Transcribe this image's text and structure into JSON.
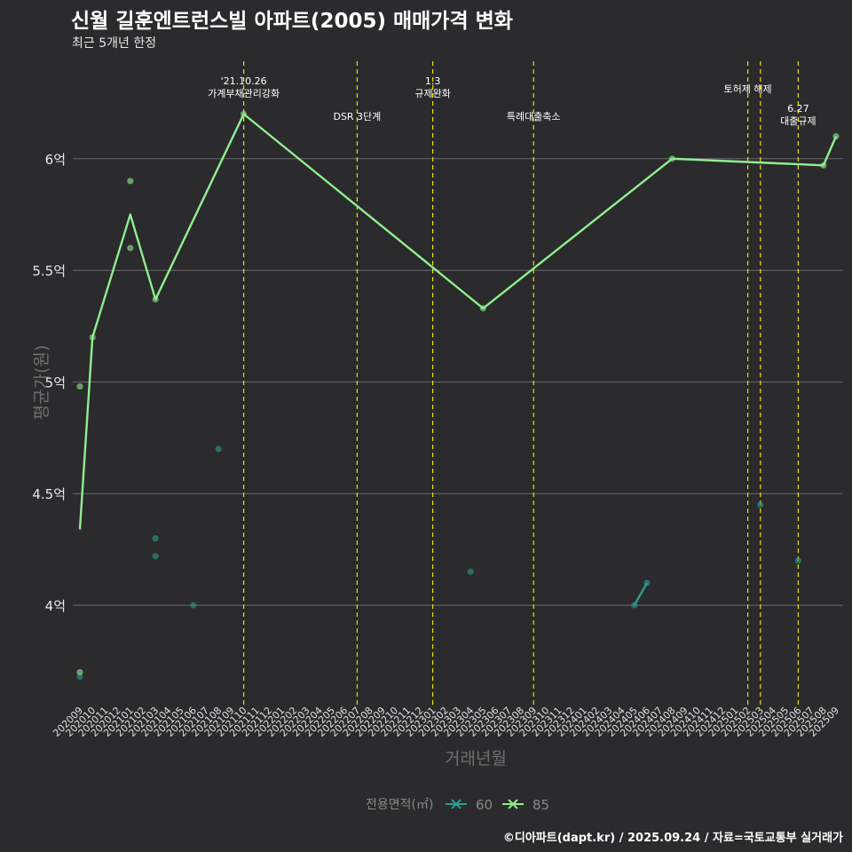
{
  "title": "신월 길훈엔트런스빌 아파트(2005) 매매가격 변화",
  "subtitle": "최근 5개년 한정",
  "credit": "©디아파트(dapt.kr) / 2025.09.24 / 자료=국토교통부 실거래가",
  "colors": {
    "background": "#2b2a2c",
    "grid": "#6b6b6b",
    "series_60": "#2a9d8f",
    "series_85": "#90ee90",
    "event_line": "#e6e600"
  },
  "chart_data": {
    "type": "line",
    "xlabel": "거래년월",
    "ylabel": "평균가(원)",
    "x": [
      "202009",
      "202010",
      "202011",
      "202012",
      "202101",
      "202102",
      "202103",
      "202104",
      "202105",
      "202106",
      "202107",
      "202108",
      "202109",
      "202110",
      "202111",
      "202112",
      "202201",
      "202202",
      "202203",
      "202204",
      "202205",
      "202206",
      "202207",
      "202208",
      "202209",
      "202210",
      "202211",
      "202212",
      "202301",
      "202302",
      "202303",
      "202304",
      "202305",
      "202306",
      "202307",
      "202308",
      "202309",
      "202310",
      "202311",
      "202312",
      "202401",
      "202402",
      "202403",
      "202404",
      "202405",
      "202406",
      "202407",
      "202408",
      "202409",
      "202410",
      "202411",
      "202412",
      "202501",
      "202502",
      "202503",
      "202504",
      "202505",
      "202506",
      "202507",
      "202508",
      "202509"
    ],
    "y_ticks": [
      {
        "value": 4.0,
        "label": "4억"
      },
      {
        "value": 4.5,
        "label": "4.5억"
      },
      {
        "value": 5.0,
        "label": "5억"
      },
      {
        "value": 5.5,
        "label": "5.5억"
      },
      {
        "value": 6.0,
        "label": "6억"
      }
    ],
    "ylim": [
      3.55,
      6.35
    ],
    "grid": true,
    "legend": {
      "title": "전용면적(㎡)",
      "position": "bottom",
      "entries": [
        {
          "name": "60",
          "color": "#2a9d8f"
        },
        {
          "name": "85",
          "color": "#90ee90"
        }
      ]
    },
    "series": [
      {
        "name": "60",
        "color": "#2a9d8f",
        "points": [
          {
            "x": "202009",
            "y": 3.68
          },
          {
            "x": "202103",
            "y": 4.3
          },
          {
            "x": "202103",
            "y": 4.22
          },
          {
            "x": "202106",
            "y": 4.0
          },
          {
            "x": "202108",
            "y": 4.7
          },
          {
            "x": "202304",
            "y": 4.15
          },
          {
            "x": "202405",
            "y": 4.0
          },
          {
            "x": "202406",
            "y": 4.1
          },
          {
            "x": "202503",
            "y": 4.45
          },
          {
            "x": "202506",
            "y": 4.2
          }
        ],
        "line": [
          {
            "x": "202405",
            "y": 4.0
          },
          {
            "x": "202406",
            "y": 4.1
          }
        ]
      },
      {
        "name": "85",
        "color": "#90ee90",
        "points": [
          {
            "x": "202009",
            "y": 3.7
          },
          {
            "x": "202009",
            "y": 4.98
          },
          {
            "x": "202010",
            "y": 5.2
          },
          {
            "x": "202101",
            "y": 5.9
          },
          {
            "x": "202101",
            "y": 5.6
          },
          {
            "x": "202103",
            "y": 5.37
          },
          {
            "x": "202110",
            "y": 6.2
          },
          {
            "x": "202305",
            "y": 5.33
          },
          {
            "x": "202408",
            "y": 6.0
          },
          {
            "x": "202508",
            "y": 5.97
          },
          {
            "x": "202509",
            "y": 6.1
          }
        ],
        "line": [
          {
            "x": "202009",
            "y": 4.34
          },
          {
            "x": "202010",
            "y": 5.2
          },
          {
            "x": "202101",
            "y": 5.75
          },
          {
            "x": "202103",
            "y": 5.37
          },
          {
            "x": "202110",
            "y": 6.2
          },
          {
            "x": "202305",
            "y": 5.33
          },
          {
            "x": "202408",
            "y": 6.0
          },
          {
            "x": "202508",
            "y": 5.97
          },
          {
            "x": "202509",
            "y": 6.1
          }
        ]
      }
    ],
    "events": [
      {
        "x": "202110",
        "lines": [
          "'21.10.26",
          "가계부채관리강화"
        ],
        "row": 1
      },
      {
        "x": "202207",
        "lines": [
          "DSR 3단계"
        ],
        "row": 3
      },
      {
        "x": "202301",
        "lines": [
          "1.3",
          "규제완화"
        ],
        "row": 1
      },
      {
        "x": "202309",
        "lines": [
          "특례대출축소"
        ],
        "row": 3
      },
      {
        "x": "202502",
        "lines": [
          "토허제 해제"
        ],
        "row": 2
      },
      {
        "x": "202503",
        "lines": [],
        "row": 2
      },
      {
        "x": "202506",
        "lines": [
          "6.27",
          "대출규제"
        ],
        "row": 4
      }
    ]
  }
}
